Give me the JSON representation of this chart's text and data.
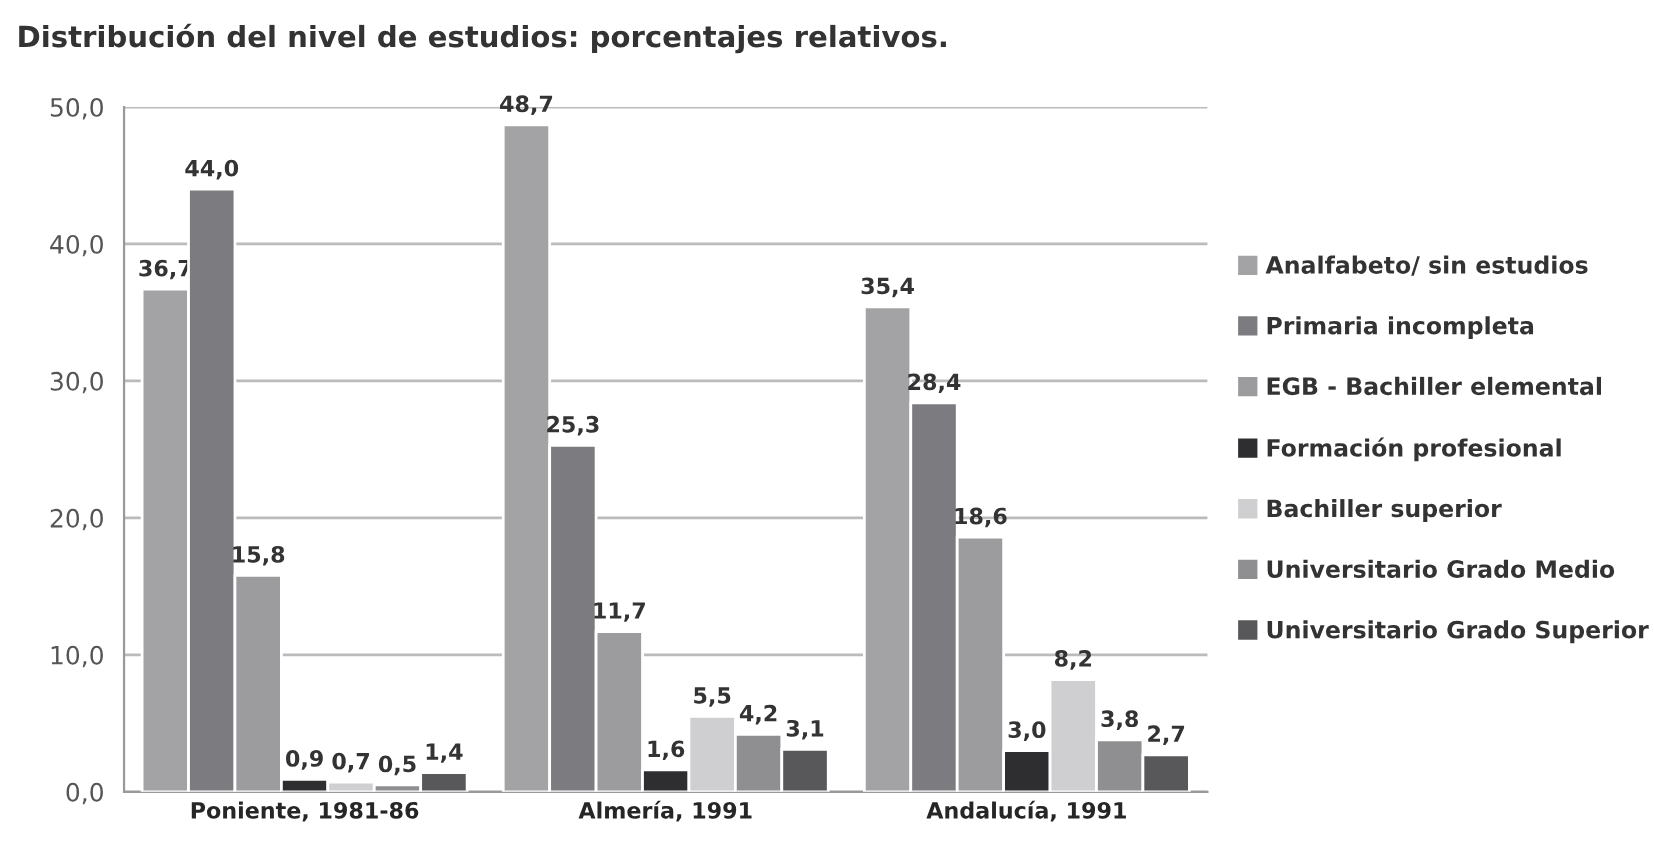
{
  "chart_data": {
    "type": "bar",
    "title": "Distribución del nivel de estudios: porcentajes relativos.",
    "categories": [
      "Poniente, 1981-86",
      "Almería, 1991",
      "Andalucía, 1991"
    ],
    "series": [
      {
        "name": "Analfabeto/ sin estudios",
        "color": "#a3a3a5",
        "values": [
          36.7,
          48.7,
          35.4
        ],
        "value_labels": [
          "36,7",
          "48,7",
          "35,4"
        ]
      },
      {
        "name": "Primaria incompleta",
        "color": "#7c7c80",
        "values": [
          44.0,
          25.3,
          28.4
        ],
        "value_labels": [
          "44,0",
          "25,3",
          "28,4"
        ]
      },
      {
        "name": "EGB - Bachiller elemental",
        "color": "#9c9c9e",
        "values": [
          15.8,
          11.7,
          18.6
        ],
        "value_labels": [
          "15,8",
          "11,7",
          "18,6"
        ]
      },
      {
        "name": "Formación profesional",
        "color": "#2e2e30",
        "values": [
          0.9,
          1.6,
          3.0
        ],
        "value_labels": [
          "0,9",
          "1,6",
          "3,0"
        ]
      },
      {
        "name": "Bachiller superior",
        "color": "#cfcfd1",
        "values": [
          0.7,
          5.5,
          8.2
        ],
        "value_labels": [
          "0,7",
          "5,5",
          "8,2"
        ]
      },
      {
        "name": "Universitario Grado Medio",
        "color": "#8f8f92",
        "values": [
          0.5,
          4.2,
          3.8
        ],
        "value_labels": [
          "0,5",
          "4,2",
          "3,8"
        ]
      },
      {
        "name": "Universitario Grado Superior",
        "color": "#58585b",
        "values": [
          1.4,
          3.1,
          2.7
        ],
        "value_labels": [
          "1,4",
          "3,1",
          "2,7"
        ]
      }
    ],
    "ylim": [
      0,
      50
    ],
    "yticks": [
      {
        "value": 0,
        "label": "0,0"
      },
      {
        "value": 10,
        "label": "10,0"
      },
      {
        "value": 20,
        "label": "20,0"
      },
      {
        "value": 30,
        "label": "30,0"
      },
      {
        "value": 40,
        "label": "40,0"
      },
      {
        "value": 50,
        "label": "50,0"
      }
    ],
    "grid": "y",
    "legend": "right"
  }
}
